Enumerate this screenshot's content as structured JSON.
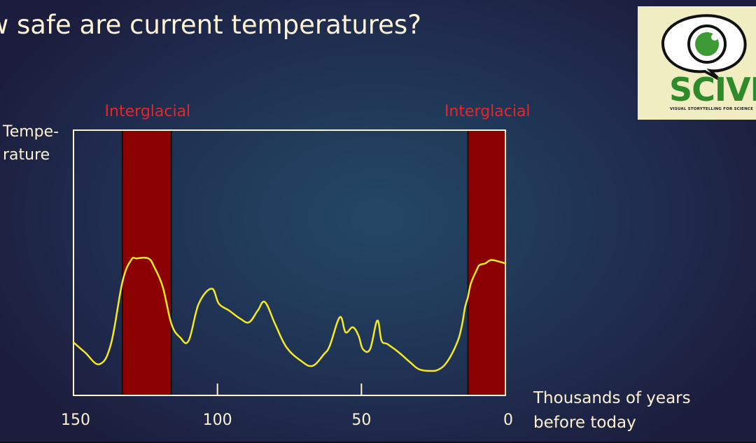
{
  "slide": {
    "title": "w safe are current temperatures?",
    "ylabel_line1": "Tempe-",
    "ylabel_line2": "rature",
    "xcaption_line1": "Thousands of years",
    "xcaption_line2": "before today"
  },
  "logo": {
    "wordmark": "SCIVIT",
    "tagline": "VISUAL STORYTELLING FOR SCIENCE",
    "icon": "eye-speech-bubble-icon"
  },
  "colors": {
    "line": "#f5e922",
    "band": "#8b0000",
    "axis": "#fdf3d4",
    "band_label": "#e8252a",
    "text": "#fdf3d4"
  },
  "chart_data": {
    "type": "line",
    "title": "w safe are current temperatures?",
    "xlabel": "Thousands of years before today",
    "ylabel": "Temperature",
    "xlim": [
      150,
      0
    ],
    "x_reversed": true,
    "ylim": [
      0,
      100
    ],
    "y_ticks_shown": false,
    "grid": false,
    "x_ticks": [
      150,
      100,
      50,
      0
    ],
    "x_tick_labels": [
      "150",
      "100",
      "50",
      "0"
    ],
    "bands": [
      {
        "label": "Interglacial",
        "from": 133,
        "to": 116
      },
      {
        "label": "Interglacial",
        "from": 13,
        "to": 0
      }
    ],
    "series": [
      {
        "x": [
          150,
          146,
          141,
          137,
          133,
          130,
          128,
          124,
          122,
          119,
          116,
          113,
          110,
          106.5,
          102,
          99.5,
          96,
          92,
          89,
          86,
          83.5,
          80,
          76,
          71,
          67,
          63,
          61,
          57.5,
          55.5,
          53,
          51,
          49.5,
          47,
          44.5,
          43,
          41,
          37,
          33,
          30,
          26,
          23,
          20,
          16.5,
          15,
          14,
          13,
          12,
          10,
          9,
          7,
          5,
          2,
          0
        ],
        "y": [
          17,
          11,
          4,
          16,
          53,
          66,
          67,
          67,
          62,
          50,
          28,
          20,
          18,
          40,
          49,
          40,
          36,
          31,
          29,
          36,
          41,
          28,
          14,
          6,
          3,
          10,
          15,
          32,
          23,
          26,
          21,
          13,
          13,
          30,
          18,
          16,
          11,
          5,
          1,
          0,
          1,
          6,
          18,
          28,
          38,
          44,
          52,
          60,
          63,
          64,
          66,
          65,
          64
        ]
      }
    ]
  }
}
